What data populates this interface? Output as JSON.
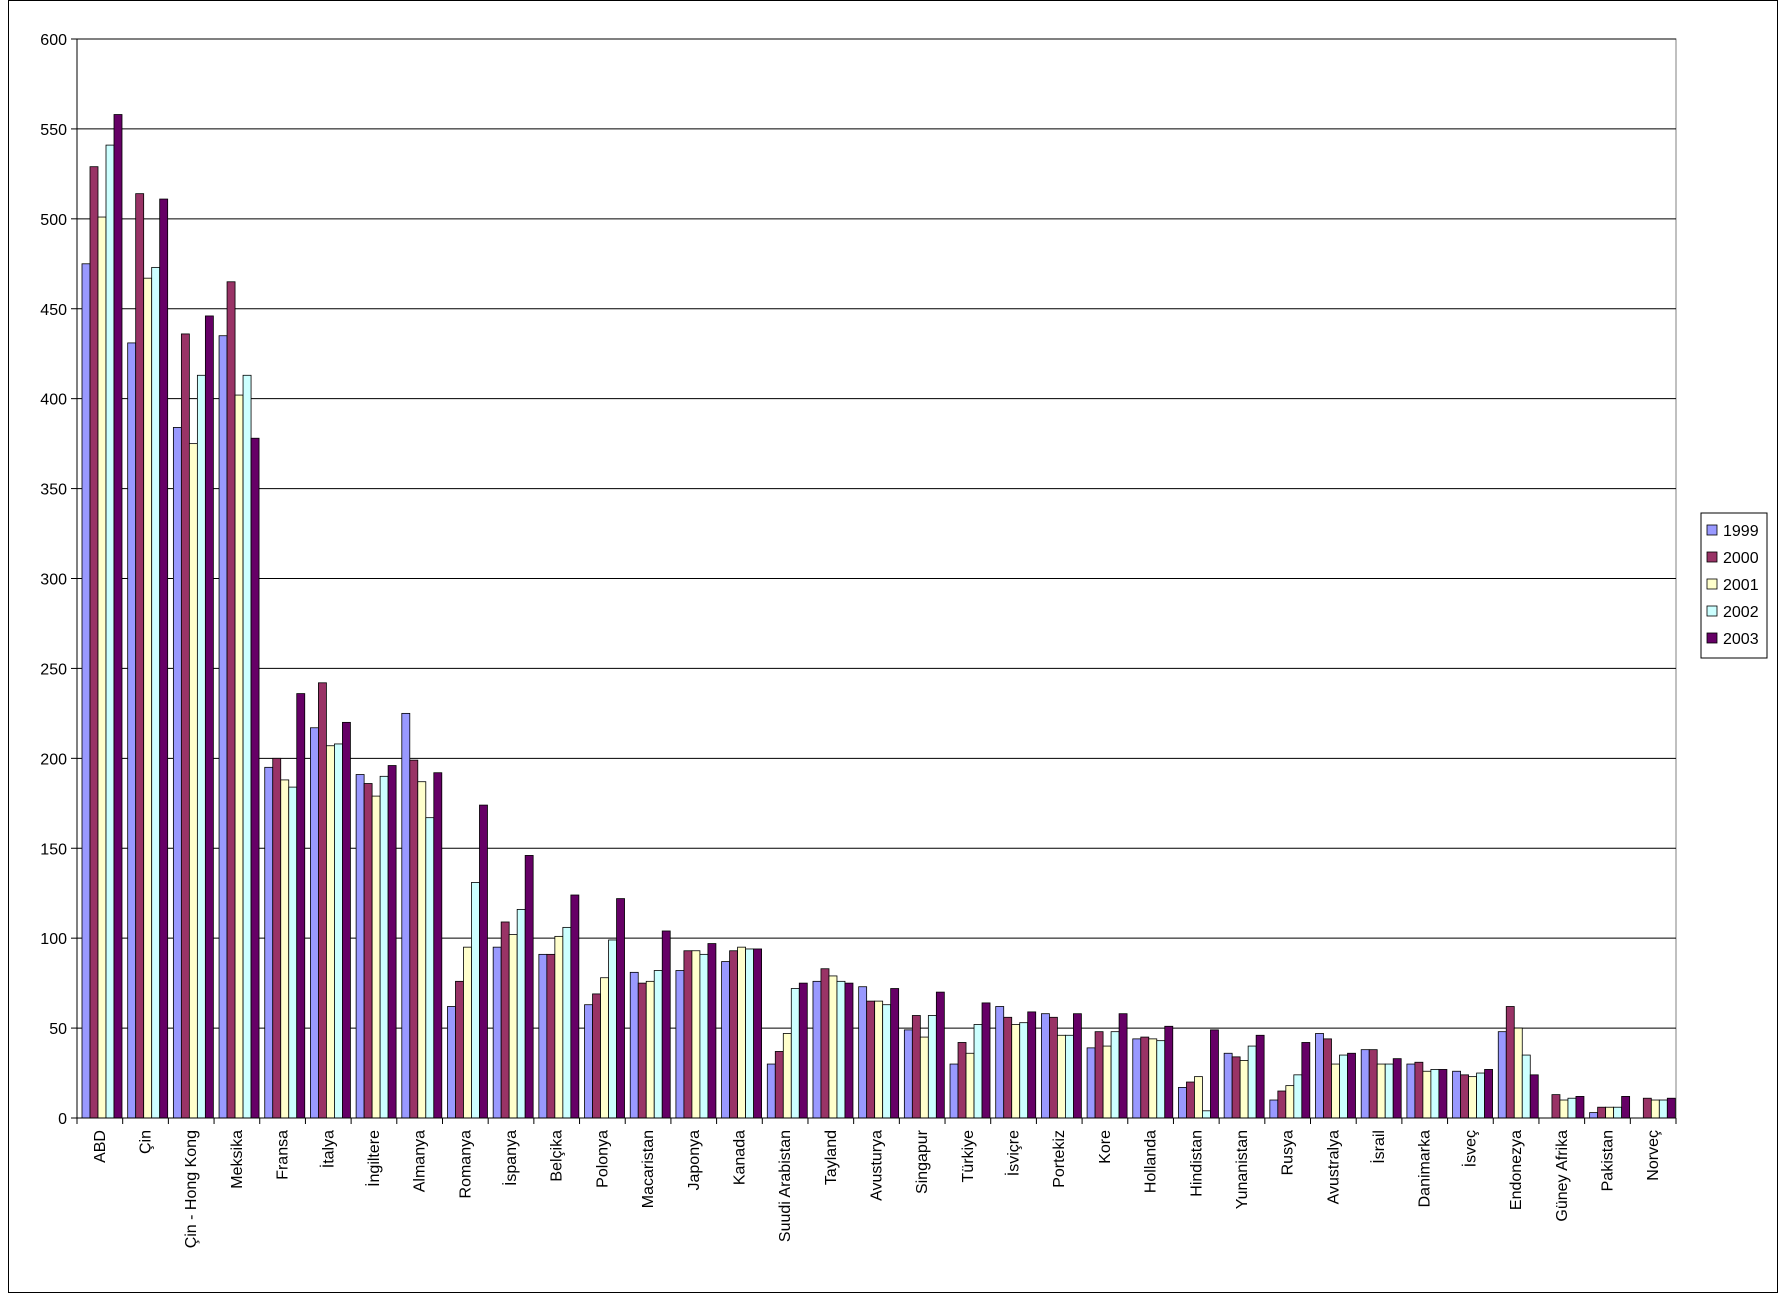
{
  "chart_data": {
    "type": "bar",
    "ylim": [
      0,
      600
    ],
    "yticks": [
      0,
      50,
      100,
      150,
      200,
      250,
      300,
      350,
      400,
      450,
      500,
      550,
      600
    ],
    "grid": true,
    "legend_position": "right",
    "categories": [
      "ABD",
      "Çin",
      "Çin - Hong Kong",
      "Meksika",
      "Fransa",
      "İtalya",
      "İngiltere",
      "Almanya",
      "Romanya",
      "İspanya",
      "Belçika",
      "Polonya",
      "Macaristan",
      "Japonya",
      "Kanada",
      "Suudi Arabistan",
      "Tayland",
      "Avusturya",
      "Singapur",
      "Türkiye",
      "İsviçre",
      "Portekiz",
      "Kore",
      "Hollanda",
      "Hindistan",
      "Yunanistan",
      "Rusya",
      "Avustralya",
      "İsrail",
      "Danimarka",
      "İsveç",
      "Endonezya",
      "Güney Afrika",
      "Pakistan",
      "Norveç"
    ],
    "series": [
      {
        "name": "1999",
        "color": "#9999FF",
        "values": [
          475,
          431,
          384,
          435,
          195,
          217,
          191,
          225,
          62,
          95,
          91,
          63,
          81,
          82,
          87,
          30,
          76,
          73,
          49,
          30,
          62,
          58,
          39,
          44,
          17,
          36,
          10,
          47,
          38,
          30,
          26,
          48,
          0,
          3,
          0
        ]
      },
      {
        "name": "2000",
        "color": "#993366",
        "values": [
          529,
          514,
          436,
          465,
          200,
          242,
          186,
          199,
          76,
          109,
          91,
          69,
          75,
          93,
          93,
          37,
          83,
          65,
          57,
          42,
          56,
          56,
          48,
          45,
          20,
          34,
          15,
          44,
          38,
          31,
          24,
          62,
          13,
          6,
          11
        ]
      },
      {
        "name": "2001",
        "color": "#FFFFCC",
        "values": [
          501,
          467,
          375,
          402,
          188,
          207,
          179,
          187,
          95,
          102,
          101,
          78,
          76,
          93,
          95,
          47,
          79,
          65,
          45,
          36,
          52,
          46,
          40,
          44,
          23,
          32,
          18,
          30,
          30,
          26,
          23,
          50,
          10,
          6,
          10
        ]
      },
      {
        "name": "2002",
        "color": "#CCFFFF",
        "values": [
          541,
          473,
          413,
          413,
          184,
          208,
          190,
          167,
          131,
          116,
          106,
          99,
          82,
          91,
          94,
          72,
          76,
          63,
          57,
          52,
          53,
          46,
          48,
          43,
          4,
          40,
          24,
          35,
          30,
          27,
          25,
          35,
          11,
          6,
          10
        ]
      },
      {
        "name": "2003",
        "color": "#660066",
        "values": [
          558,
          511,
          446,
          378,
          236,
          220,
          196,
          192,
          174,
          146,
          124,
          122,
          104,
          97,
          94,
          75,
          75,
          72,
          70,
          64,
          59,
          58,
          58,
          51,
          49,
          46,
          42,
          36,
          33,
          27,
          27,
          24,
          12,
          12,
          11
        ]
      }
    ]
  }
}
